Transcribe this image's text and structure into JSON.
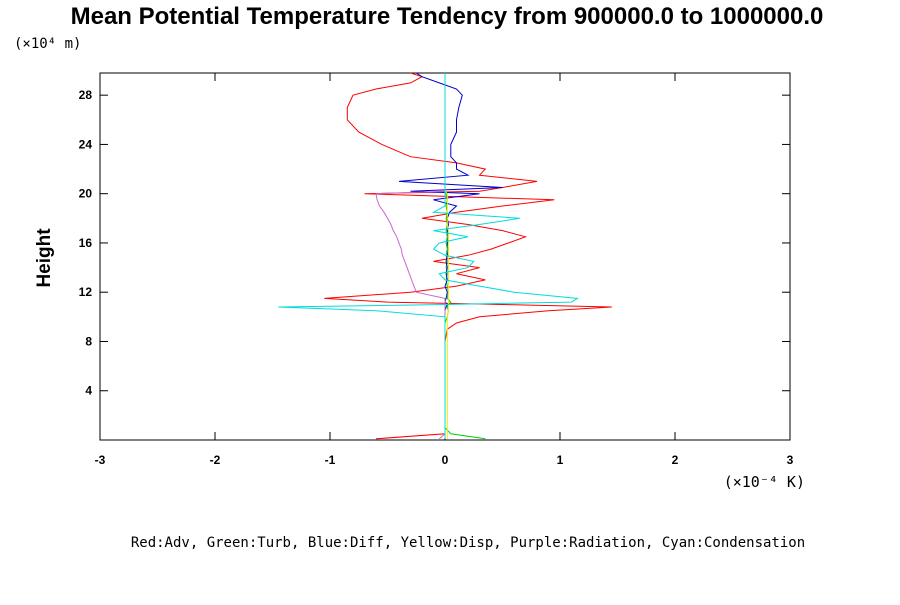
{
  "chart_data": {
    "type": "line",
    "title": "Mean Potential Temperature Tendency from 900000.0 to 1000000.0",
    "y_unit": "(×10⁴ m)",
    "x_unit": "(×10⁻⁴ K)",
    "ylabel": "Height",
    "legend": "Red:Adv, Green:Turb, Blue:Diff, Yellow:Disp, Purple:Radiation, Cyan:Condensation",
    "xlim": [
      -3,
      3
    ],
    "xticks": [
      -3,
      -2,
      -1,
      0,
      1,
      2,
      3
    ],
    "ylim": [
      0,
      29.8
    ],
    "yticks": [
      4,
      8,
      12,
      16,
      20,
      24,
      28
    ],
    "y": [
      0.1,
      0.5,
      1,
      2,
      4,
      6,
      8,
      9,
      9.5,
      10,
      10.5,
      10.8,
      11,
      11.2,
      11.5,
      12,
      12.5,
      13,
      13.5,
      14,
      14.5,
      15,
      15.5,
      16,
      16.5,
      17,
      17.5,
      18,
      18.5,
      19,
      19.5,
      20,
      20.2,
      20.5,
      21,
      21.5,
      22,
      22.5,
      23,
      24,
      25,
      26,
      27,
      28,
      28.5,
      29,
      29.5,
      29.8
    ],
    "series": [
      {
        "color": "#ff0000",
        "values": [
          -0.6,
          0,
          0,
          0,
          0,
          0,
          0,
          0.02,
          0.1,
          0.3,
          0.9,
          1.45,
          0.5,
          -0.5,
          -1.05,
          -0.3,
          0.1,
          0.35,
          0.1,
          0.3,
          -0.1,
          0.2,
          0.4,
          0.55,
          0.7,
          0.5,
          0.2,
          -0.2,
          0.1,
          0.5,
          0.95,
          -0.7,
          0.3,
          0.5,
          0.8,
          0.3,
          0.35,
          0.1,
          -0.3,
          -0.55,
          -0.75,
          -0.85,
          -0.85,
          -0.8,
          -0.6,
          -0.3,
          -0.2,
          -0.3
        ]
      },
      {
        "color": "#00cc00",
        "values": [
          0.35,
          0.05,
          0,
          0,
          0,
          0,
          0,
          0,
          0,
          0.02,
          0.03,
          0.02,
          0.03,
          0.05,
          0.02,
          0.03,
          0.02,
          0.01,
          0.02,
          0.01,
          0.02,
          0.01,
          0.02,
          0.01,
          0.02,
          0.01,
          0.02,
          0.01,
          0.02,
          0.01,
          0.02,
          0.01,
          0,
          0,
          0,
          0,
          0,
          0,
          0,
          0,
          0,
          0,
          0,
          0,
          0,
          0,
          0,
          0
        ]
      },
      {
        "color": "#0000cc",
        "values": [
          0,
          0,
          0,
          0,
          0,
          0,
          0,
          0,
          0,
          0,
          0,
          0.01,
          0.02,
          0,
          0.01,
          0.02,
          0,
          0.02,
          0.01,
          0.02,
          0.01,
          0.02,
          0.03,
          0.02,
          0.03,
          0.02,
          0.03,
          0.02,
          0.04,
          0.1,
          -0.1,
          0.3,
          -0.3,
          0.5,
          -0.4,
          0.2,
          0.1,
          0.1,
          0.05,
          0.05,
          0.1,
          0.1,
          0.12,
          0.15,
          0.1,
          -0.05,
          -0.2,
          -0.25
        ]
      },
      {
        "color": "#eeee00",
        "values": [
          0.02,
          0.02,
          0.02,
          0.02,
          0.02,
          0.02,
          0.02,
          0.02,
          0.02,
          0.02,
          0.03,
          0.03,
          0.03,
          0.03,
          0.03,
          0.03,
          0.03,
          0.03,
          0.03,
          0.03,
          0.03,
          0.03,
          0.03,
          0.03,
          0.03,
          0.03,
          0.02,
          0.02,
          0.02,
          0.02,
          0.02,
          0.02,
          0,
          0,
          0,
          0,
          0,
          0,
          0,
          0,
          0,
          0,
          0,
          0,
          0,
          0,
          0,
          0
        ]
      },
      {
        "color": "#cc66cc",
        "values": [
          -0.05,
          0,
          0,
          0,
          0,
          0,
          0,
          0,
          0,
          0,
          0,
          0,
          0,
          0,
          0,
          -0.25,
          -0.27,
          -0.29,
          -0.31,
          -0.33,
          -0.35,
          -0.37,
          -0.38,
          -0.4,
          -0.42,
          -0.45,
          -0.47,
          -0.5,
          -0.53,
          -0.57,
          -0.59,
          -0.6,
          0,
          0,
          0,
          0,
          0,
          0,
          0,
          0,
          0,
          0,
          0,
          0,
          0,
          0,
          0,
          0
        ]
      },
      {
        "color": "#00dddd",
        "values": [
          0,
          0,
          0,
          0,
          0,
          0,
          0,
          0,
          0,
          0,
          -0.6,
          -1.45,
          0,
          1.1,
          1.15,
          0.6,
          0.3,
          0,
          -0.05,
          0.2,
          0.25,
          0,
          -0.1,
          -0.05,
          0.2,
          -0.1,
          0.3,
          0.65,
          -0.1,
          0,
          0,
          0,
          0,
          0,
          0,
          0,
          0,
          0,
          0,
          0,
          0,
          0,
          0,
          0,
          0,
          0,
          0,
          0
        ]
      }
    ]
  }
}
